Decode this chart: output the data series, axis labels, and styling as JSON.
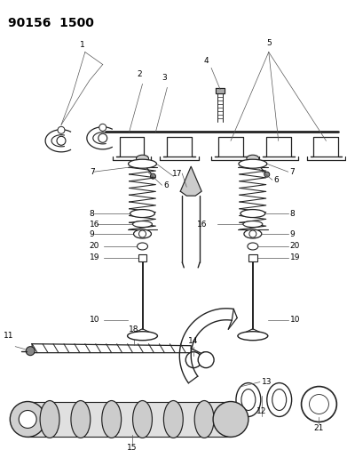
{
  "title": "90156  1500",
  "bg_color": "#ffffff",
  "line_color": "#222222",
  "text_color": "#000000",
  "title_fontsize": 10,
  "label_fontsize": 6.5,
  "fig_width": 3.91,
  "fig_height": 5.33,
  "dpi": 100
}
